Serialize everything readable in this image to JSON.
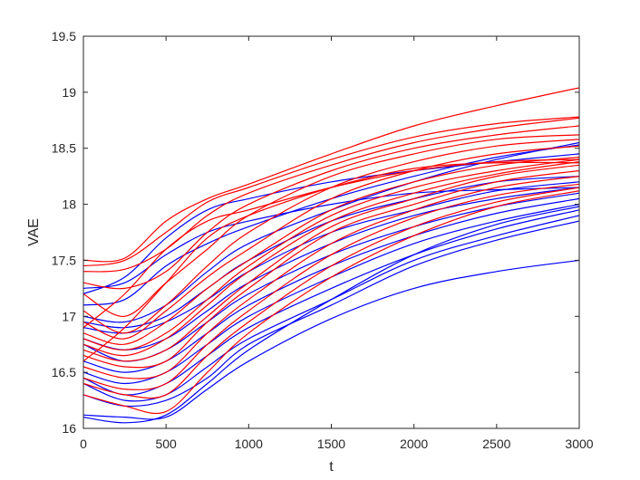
{
  "chart_data": {
    "type": "line",
    "xlabel": "t",
    "ylabel": "VAE",
    "xlim": [
      0,
      3000
    ],
    "ylim": [
      16,
      19.5
    ],
    "xticks": [
      "0",
      "500",
      "1000",
      "1500",
      "2000",
      "2500",
      "3000"
    ],
    "yticks": [
      "16",
      "16.5",
      "17",
      "17.5",
      "18",
      "18.5",
      "19",
      "19.5"
    ],
    "grid": false,
    "box": true,
    "colors": {
      "group_a": "#ff0000",
      "group_b": "#0000ff",
      "axis": "#262626"
    },
    "x": [
      0,
      250,
      500,
      750,
      1000,
      1500,
      2000,
      2500,
      3000
    ],
    "series": [
      {
        "group": "red",
        "values": [
          17.5,
          17.52,
          17.85,
          18.05,
          18.18,
          18.45,
          18.7,
          18.88,
          19.04
        ]
      },
      {
        "group": "red",
        "values": [
          17.45,
          17.5,
          17.75,
          18.02,
          18.15,
          18.4,
          18.6,
          18.72,
          18.78
        ]
      },
      {
        "group": "red",
        "values": [
          17.4,
          17.42,
          17.6,
          17.9,
          18.1,
          18.35,
          18.55,
          18.68,
          18.77
        ]
      },
      {
        "group": "red",
        "values": [
          17.3,
          17.25,
          17.4,
          17.75,
          18.0,
          18.3,
          18.5,
          18.62,
          18.7
        ]
      },
      {
        "group": "red",
        "values": [
          17.2,
          17.0,
          17.3,
          17.6,
          17.9,
          18.25,
          18.45,
          18.58,
          18.62
        ]
      },
      {
        "group": "red",
        "values": [
          17.05,
          16.85,
          17.1,
          17.45,
          17.75,
          18.15,
          18.38,
          18.52,
          18.58
        ]
      },
      {
        "group": "red",
        "values": [
          16.95,
          16.8,
          17.05,
          17.35,
          17.6,
          18.05,
          18.3,
          18.45,
          18.52
        ]
      },
      {
        "group": "red",
        "values": [
          16.85,
          16.75,
          16.95,
          17.25,
          17.5,
          17.95,
          18.2,
          18.35,
          18.42
        ]
      },
      {
        "group": "red",
        "values": [
          16.8,
          16.7,
          16.85,
          17.15,
          17.45,
          17.9,
          18.15,
          18.3,
          18.4
        ]
      },
      {
        "group": "red",
        "values": [
          16.75,
          16.65,
          16.8,
          17.1,
          17.4,
          17.85,
          18.1,
          18.27,
          18.38
        ]
      },
      {
        "group": "red",
        "values": [
          16.7,
          16.6,
          16.7,
          17.0,
          17.3,
          17.8,
          18.05,
          18.25,
          18.35
        ]
      },
      {
        "group": "red",
        "values": [
          16.65,
          16.55,
          16.6,
          16.95,
          17.25,
          17.75,
          18.0,
          18.2,
          18.3
        ]
      },
      {
        "group": "red",
        "values": [
          16.55,
          16.45,
          16.5,
          16.85,
          17.15,
          17.65,
          17.95,
          18.15,
          18.25
        ]
      },
      {
        "group": "red",
        "values": [
          16.45,
          16.35,
          16.4,
          16.75,
          17.05,
          17.55,
          17.88,
          18.08,
          18.18
        ]
      },
      {
        "group": "red",
        "values": [
          16.4,
          16.3,
          16.3,
          16.65,
          16.95,
          17.45,
          17.8,
          18.02,
          18.15
        ]
      },
      {
        "group": "red",
        "values": [
          16.3,
          16.2,
          16.15,
          16.5,
          16.85,
          17.35,
          17.72,
          17.98,
          18.12
        ]
      },
      {
        "group": "red",
        "values": [
          16.9,
          17.2,
          17.6,
          17.85,
          17.95,
          18.15,
          18.3,
          18.38,
          18.4
        ]
      },
      {
        "group": "red",
        "values": [
          16.6,
          16.9,
          17.3,
          17.7,
          17.9,
          18.15,
          18.32,
          18.37,
          18.37
        ]
      },
      {
        "group": "blue",
        "values": [
          17.25,
          17.3,
          17.55,
          17.75,
          17.85,
          18.0,
          18.1,
          18.13,
          18.15
        ]
      },
      {
        "group": "blue",
        "values": [
          17.2,
          17.35,
          17.7,
          17.95,
          18.05,
          18.2,
          18.3,
          18.38,
          18.45
        ]
      },
      {
        "group": "blue",
        "values": [
          17.1,
          17.15,
          17.45,
          17.65,
          17.8,
          18.05,
          18.25,
          18.42,
          18.53
        ]
      },
      {
        "group": "blue",
        "values": [
          17.0,
          16.95,
          17.1,
          17.4,
          17.65,
          17.95,
          18.2,
          18.4,
          18.55
        ]
      },
      {
        "group": "blue",
        "values": [
          16.95,
          16.9,
          17.0,
          17.25,
          17.5,
          17.85,
          18.05,
          18.2,
          18.25
        ]
      },
      {
        "group": "blue",
        "values": [
          16.9,
          16.85,
          16.95,
          17.15,
          17.4,
          17.75,
          17.95,
          18.12,
          18.2
        ]
      },
      {
        "group": "blue",
        "values": [
          16.8,
          16.7,
          16.8,
          17.05,
          17.3,
          17.65,
          17.9,
          18.05,
          18.15
        ]
      },
      {
        "group": "blue",
        "values": [
          16.75,
          16.6,
          16.7,
          16.95,
          17.2,
          17.55,
          17.8,
          17.98,
          18.1
        ]
      },
      {
        "group": "blue",
        "values": [
          16.6,
          16.5,
          16.6,
          16.85,
          17.1,
          17.45,
          17.72,
          17.92,
          18.05
        ]
      },
      {
        "group": "blue",
        "values": [
          16.5,
          16.4,
          16.5,
          16.75,
          17.0,
          17.35,
          17.65,
          17.85,
          18.0
        ]
      },
      {
        "group": "blue",
        "values": [
          16.45,
          16.3,
          16.4,
          16.65,
          16.9,
          17.25,
          17.55,
          17.78,
          17.95
        ]
      },
      {
        "group": "blue",
        "values": [
          16.4,
          16.25,
          16.3,
          16.55,
          16.8,
          17.15,
          17.5,
          17.72,
          17.9
        ]
      },
      {
        "group": "blue",
        "values": [
          16.3,
          16.2,
          16.25,
          16.45,
          16.75,
          17.1,
          17.45,
          17.68,
          17.85
        ]
      },
      {
        "group": "blue",
        "values": [
          16.12,
          16.1,
          16.1,
          16.35,
          16.6,
          16.98,
          17.25,
          17.4,
          17.5
        ]
      },
      {
        "group": "blue",
        "values": [
          16.1,
          16.05,
          16.12,
          16.4,
          16.7,
          17.15,
          17.55,
          17.82,
          17.98
        ]
      }
    ]
  }
}
